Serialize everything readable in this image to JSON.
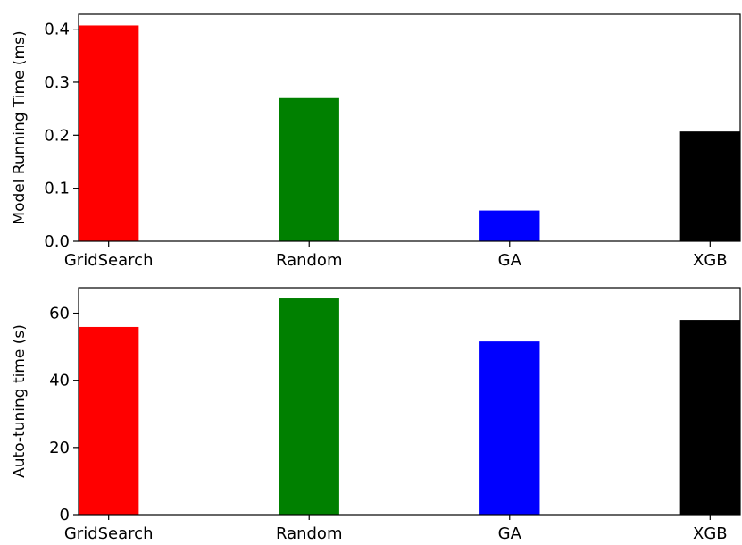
{
  "chart_data": [
    {
      "type": "bar",
      "categories": [
        "GridSearch",
        "Random",
        "GA",
        "XGB"
      ],
      "values": [
        0.407,
        0.27,
        0.058,
        0.207
      ],
      "colors": [
        "#ff0000",
        "#008000",
        "#0000ff",
        "#000000"
      ],
      "ylabel": "Model Running Time (ms)",
      "xlabel": "",
      "ylim": [
        0,
        0.428
      ],
      "yticks": [
        0.0,
        0.1,
        0.2,
        0.3,
        0.4
      ],
      "ytick_labels": [
        "0.0",
        "0.1",
        "0.2",
        "0.3",
        "0.4"
      ],
      "grid": false
    },
    {
      "type": "bar",
      "categories": [
        "GridSearch",
        "Random",
        "GA",
        "XGB"
      ],
      "values": [
        55.9,
        64.4,
        51.6,
        58.0
      ],
      "colors": [
        "#ff0000",
        "#008000",
        "#0000ff",
        "#000000"
      ],
      "ylabel": "Auto-tuning time (s)",
      "xlabel": "",
      "ylim": [
        0,
        67.6
      ],
      "yticks": [
        0,
        20,
        40,
        60
      ],
      "ytick_labels": [
        "0",
        "20",
        "40",
        "60"
      ],
      "grid": false
    }
  ]
}
